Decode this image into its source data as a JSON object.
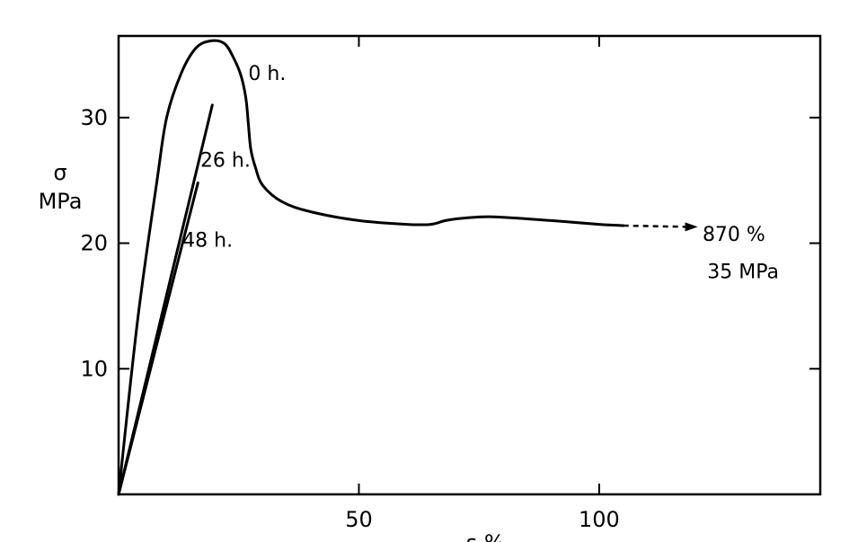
{
  "chart_data": {
    "type": "line",
    "xlabel": "ε %",
    "ylabel_symbol": "σ",
    "ylabel_unit": "MPa",
    "xlim": [
      0,
      146
    ],
    "ylim": [
      0,
      36.5
    ],
    "x_ticks": [
      50,
      100
    ],
    "x_tick_labels": [
      "50",
      "100"
    ],
    "y_ticks": [
      10,
      20,
      30
    ],
    "y_tick_labels": [
      "10",
      "20",
      "30"
    ],
    "grid": false,
    "series": [
      {
        "name": "0 h.",
        "x": [
          0,
          4,
          8,
          10,
          13,
          16,
          19,
          22,
          24,
          25.5,
          26.5,
          27,
          27.5,
          28.5,
          30,
          34,
          40,
          50,
          60,
          65,
          68,
          72,
          78,
          90,
          100,
          105
        ],
        "y": [
          0,
          14,
          25,
          30,
          33.5,
          35.5,
          36.1,
          35.9,
          34.7,
          33.3,
          31.5,
          29.5,
          27.5,
          26,
          24.6,
          23.3,
          22.5,
          21.8,
          21.5,
          21.5,
          21.8,
          22,
          22.1,
          21.8,
          21.5,
          21.4
        ]
      },
      {
        "name": "26 h.",
        "x": [
          0,
          19.5
        ],
        "y": [
          0,
          31
        ]
      },
      {
        "name": "48 h.",
        "x": [
          0,
          16.5
        ],
        "y": [
          0,
          24.8
        ]
      }
    ],
    "extension": {
      "x": [
        105,
        120.5
      ],
      "y": [
        21.4,
        21.3
      ],
      "style": "dashed-arrow"
    },
    "annotations": [
      {
        "text": "0 h.",
        "x": 27,
        "y": 33
      },
      {
        "text": "26 h.",
        "x": 17,
        "y": 26.1
      },
      {
        "text": "48 h.",
        "x": 13.3,
        "y": 19.7
      },
      {
        "text": "870 %",
        "x": 121.5,
        "y": 20.2
      },
      {
        "text": "35 MPa",
        "x": 122.5,
        "y": 17.2
      }
    ]
  }
}
